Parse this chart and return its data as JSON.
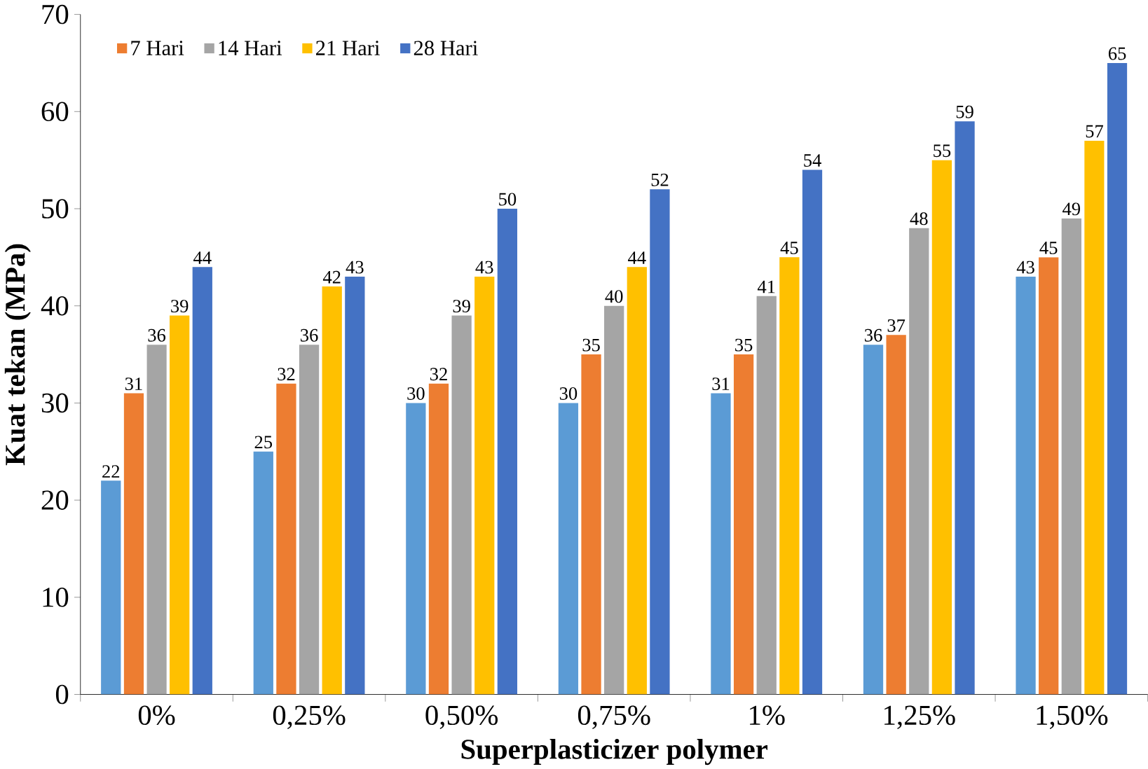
{
  "chart_data": {
    "type": "bar",
    "xlabel": "Superplasticizer polymer",
    "ylabel": "Kuat tekan (MPa)",
    "categories": [
      "0%",
      "0,25%",
      "0,50%",
      "0,75%",
      "1%",
      "1,25%",
      "1,50%"
    ],
    "series": [
      {
        "color": "#5b9bd5",
        "values": [
          22,
          25,
          30,
          30,
          31,
          36,
          43
        ]
      },
      {
        "name": "7 Hari",
        "color": "#ed7d31",
        "values": [
          31,
          32,
          32,
          35,
          35,
          37,
          45
        ]
      },
      {
        "name": "14 Hari",
        "color": "#a5a5a5",
        "values": [
          36,
          36,
          39,
          40,
          41,
          48,
          49
        ]
      },
      {
        "name": "21 Hari",
        "color": "#ffc000",
        "values": [
          39,
          42,
          43,
          44,
          45,
          55,
          57
        ]
      },
      {
        "name": "28 Hari",
        "color": "#4472c4",
        "values": [
          44,
          43,
          50,
          52,
          54,
          59,
          65
        ]
      }
    ],
    "ylim": [
      0,
      70
    ],
    "yticks": [
      0,
      10,
      20,
      30,
      40,
      50,
      60,
      70
    ],
    "data_labels": true,
    "legend": "top left",
    "grid": false
  }
}
